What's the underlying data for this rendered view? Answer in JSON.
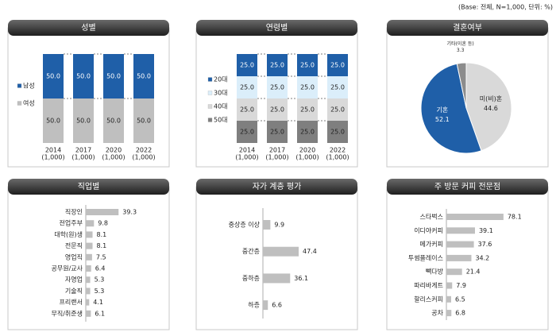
{
  "note": "(Base: 전체, N=1,000, 단위: %)",
  "chart_data": [
    {
      "type": "stacked",
      "title": "성별",
      "categories": [
        "2014",
        "2017",
        "2020",
        "2022"
      ],
      "category_notes": [
        "(1,000)",
        "(1,000)",
        "(1,000)",
        "(1,000)"
      ],
      "series": [
        {
          "name": "남성",
          "color": "#1f5fa8",
          "values": [
            50,
            50,
            50,
            50
          ],
          "value_labels": [
            "50.0",
            "50.0",
            "50.0",
            "50.0"
          ]
        },
        {
          "name": "여성",
          "color": "#bfbfbf",
          "values": [
            50,
            50,
            50,
            50
          ],
          "value_labels": [
            "50.0",
            "50.0",
            "50.0",
            "50.0"
          ]
        }
      ]
    },
    {
      "type": "stacked",
      "title": "연령별",
      "categories": [
        "2014",
        "2017",
        "2020",
        "2022"
      ],
      "category_notes": [
        "(1,000)",
        "(1,000)",
        "(1,000)",
        "(1,000)"
      ],
      "series": [
        {
          "name": "20대",
          "color": "#1f5fa8",
          "values": [
            25,
            25,
            25,
            25
          ],
          "value_labels": [
            "25.0",
            "25.0",
            "25.0",
            "25.0"
          ]
        },
        {
          "name": "30대",
          "color": "#dbeefa",
          "values": [
            25,
            25,
            25,
            25
          ],
          "value_labels": [
            "25.0",
            "25.0",
            "25.0",
            "25.0"
          ]
        },
        {
          "name": "40대",
          "color": "#d9d9d9",
          "values": [
            25,
            25,
            25,
            25
          ],
          "value_labels": [
            "25.0",
            "25.0",
            "25.0",
            "25.0"
          ]
        },
        {
          "name": "50대",
          "color": "#7f7f7f",
          "values": [
            25,
            25,
            25,
            25
          ],
          "value_labels": [
            "25.0",
            "25.0",
            "25.0",
            "25.0"
          ]
        }
      ]
    },
    {
      "type": "pie",
      "title": "결혼여부",
      "labels": [
        "미(비)혼",
        "기혼",
        "기타(이혼 등)"
      ],
      "values": [
        44.6,
        52.1,
        3.3
      ],
      "colors": [
        "#d9d9d9",
        "#1f5fa8",
        "#8c8c8c"
      ]
    },
    {
      "type": "hbar",
      "title": "직업별",
      "color": "#bfbfbf",
      "categories": [
        "직장인",
        "전업주부",
        "대학(원)생",
        "전문직",
        "영업직",
        "공무원/교사",
        "자영업",
        "기술직",
        "프리랜서",
        "무직/취준생"
      ],
      "values": [
        39.3,
        9.8,
        8.1,
        8.1,
        7.5,
        6.4,
        5.3,
        5.3,
        4.1,
        6.1
      ]
    },
    {
      "type": "hbar",
      "title": "자가 계층 평가",
      "color": "#bfbfbf",
      "categories": [
        "중상층 이상",
        "중간층",
        "중하층",
        "하층"
      ],
      "values": [
        9.9,
        47.4,
        36.1,
        6.6
      ]
    },
    {
      "type": "hbar",
      "title": "주 방문 커피 전문점",
      "color": "#bfbfbf",
      "categories": [
        "스타벅스",
        "이디야커피",
        "메가커피",
        "투썸플레이스",
        "빽다방",
        "파리바게트",
        "할리스커피",
        "공차"
      ],
      "values": [
        78.1,
        39.1,
        37.6,
        34.2,
        21.4,
        7.9,
        6.5,
        6.8
      ]
    }
  ]
}
